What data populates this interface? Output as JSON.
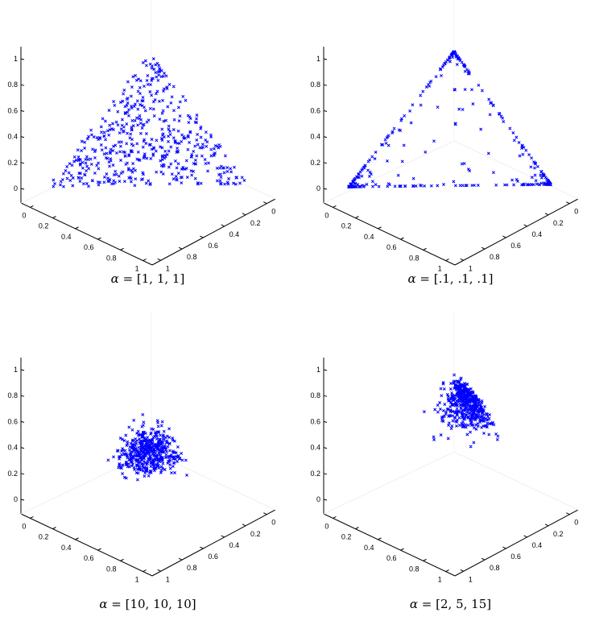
{
  "figure": {
    "marker": "x",
    "marker_color": "#0000ff",
    "axis_color": "#000000",
    "z_ticks": [
      "0",
      "0.2",
      "0.4",
      "0.6",
      "0.8",
      "1"
    ],
    "left_ticks": [
      "0",
      "0.2",
      "0.4",
      "0.6",
      "0.8",
      "1"
    ],
    "right_ticks": [
      "0",
      "0.2",
      "0.4",
      "0.6",
      "0.8",
      "1"
    ]
  },
  "panels": [
    {
      "caption_symbol": "α",
      "caption_eq": " = ",
      "caption_value": "[1, 1, 1]"
    },
    {
      "caption_symbol": "α",
      "caption_eq": " = ",
      "caption_value": "[.1, .1, .1]"
    },
    {
      "caption_symbol": "α",
      "caption_eq": " = ",
      "caption_value": "[10, 10, 10]"
    },
    {
      "caption_symbol": "α",
      "caption_eq": " = ",
      "caption_value": "[2, 5, 15]"
    }
  ],
  "chart_data": [
    {
      "type": "scatter",
      "title": "α = [1, 1, 1]",
      "description": "Samples from a Dirichlet distribution on the 3-simplex, uniformly spread over the triangle",
      "zlim": [
        0,
        1.1
      ],
      "xlim": [
        0,
        1
      ],
      "ylim": [
        0,
        1
      ],
      "z_ticks": [
        0,
        0.2,
        0.4,
        0.6,
        0.8,
        1
      ],
      "x_ticks": [
        0,
        0.2,
        0.4,
        0.6,
        0.8,
        1
      ],
      "y_ticks": [
        0,
        0.2,
        0.4,
        0.6,
        0.8,
        1
      ],
      "grid": false,
      "distribution": "uniform",
      "approx_points": 500
    },
    {
      "type": "scatter",
      "title": "α = [.1, .1, .1]",
      "description": "Samples concentrated at the corners and along the edges of the simplex",
      "zlim": [
        0,
        1.1
      ],
      "xlim": [
        0,
        1
      ],
      "ylim": [
        0,
        1
      ],
      "z_ticks": [
        0,
        0.2,
        0.4,
        0.6,
        0.8,
        1
      ],
      "x_ticks": [
        0,
        0.2,
        0.4,
        0.6,
        0.8,
        1
      ],
      "y_ticks": [
        0,
        0.2,
        0.4,
        0.6,
        0.8,
        1
      ],
      "grid": false,
      "distribution": "edges_and_corners",
      "approx_points": 500
    },
    {
      "type": "scatter",
      "title": "α = [10, 10, 10]",
      "description": "Samples tightly clustered around the simplex centroid (z ≈ 0.2–0.8)",
      "zlim": [
        0,
        1.1
      ],
      "xlim": [
        0,
        1
      ],
      "ylim": [
        0,
        1
      ],
      "z_ticks": [
        0,
        0.2,
        0.4,
        0.6,
        0.8,
        1
      ],
      "x_ticks": [
        0,
        0.2,
        0.4,
        0.6,
        0.8,
        1
      ],
      "y_ticks": [
        0,
        0.2,
        0.4,
        0.6,
        0.8,
        1
      ],
      "grid": false,
      "distribution": "central_cluster",
      "approx_points": 500
    },
    {
      "type": "scatter",
      "title": "α = [2, 5, 15]",
      "description": "Samples clustered near the top vertex of the simplex (z ≈ 0.5–1.1)",
      "zlim": [
        0,
        1.1
      ],
      "xlim": [
        0,
        1
      ],
      "ylim": [
        0,
        1
      ],
      "z_ticks": [
        0,
        0.2,
        0.4,
        0.6,
        0.8,
        1
      ],
      "x_ticks": [
        0,
        0.2,
        0.4,
        0.6,
        0.8,
        1
      ],
      "y_ticks": [
        0,
        0.2,
        0.4,
        0.6,
        0.8,
        1
      ],
      "grid": false,
      "distribution": "top_cluster",
      "approx_points": 500
    }
  ]
}
